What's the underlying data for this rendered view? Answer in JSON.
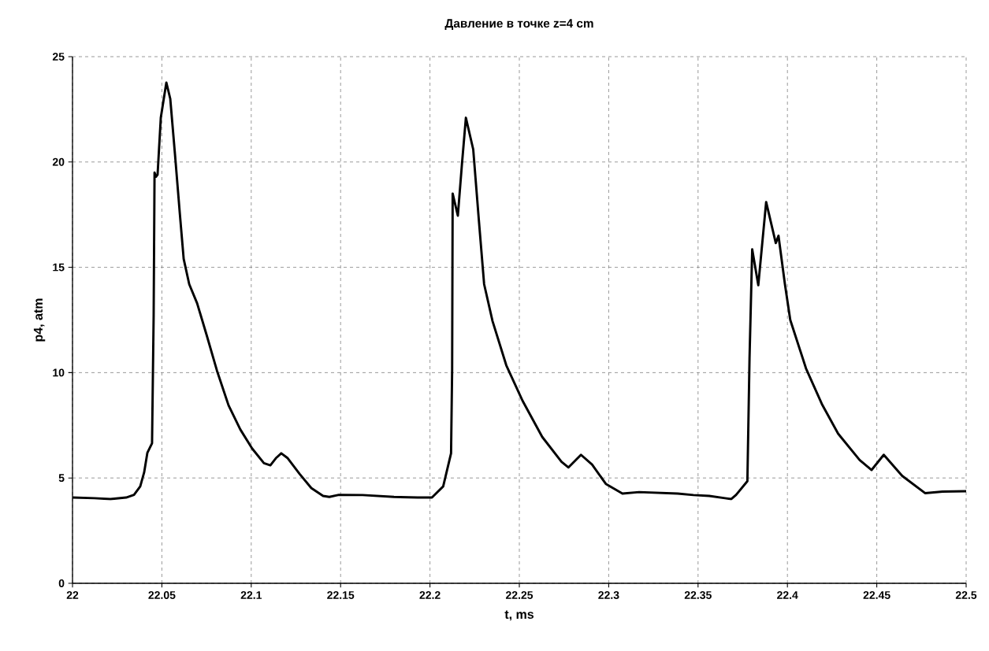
{
  "chart_data": {
    "type": "line",
    "title": "Давление в точке z=4 cm",
    "xlabel": "t, ms",
    "ylabel": "p4, atm",
    "xlim": [
      22,
      22.5
    ],
    "ylim": [
      0,
      25
    ],
    "xticks": [
      22,
      22.05,
      22.1,
      22.15,
      22.2,
      22.25,
      22.3,
      22.35,
      22.4,
      22.45,
      22.5
    ],
    "yticks": [
      0,
      5,
      10,
      15,
      20,
      25
    ],
    "grid": true,
    "line_style": "solid",
    "series": [
      {
        "color": "#000000",
        "x": [
          22.0,
          22.0123,
          22.0212,
          22.03,
          22.0344,
          22.0379,
          22.0401,
          22.0419,
          22.0445,
          22.0454,
          22.0459,
          22.0467,
          22.0476,
          22.0494,
          22.0525,
          22.0547,
          22.0573,
          22.06,
          22.0622,
          22.0653,
          22.0697,
          22.075,
          22.0808,
          22.0873,
          22.0939,
          22.1005,
          22.1071,
          22.1107,
          22.1138,
          22.1168,
          22.1204,
          22.127,
          22.1336,
          22.1402,
          22.1437,
          22.149,
          22.1623,
          22.1799,
          22.1931,
          22.2011,
          22.2074,
          22.2118,
          22.2124,
          22.2127,
          22.2156,
          22.2179,
          22.2201,
          22.2242,
          22.2273,
          22.2303,
          22.235,
          22.2427,
          22.2519,
          22.2628,
          22.2736,
          22.2775,
          22.2845,
          22.2907,
          22.2984,
          22.3077,
          22.317,
          22.3386,
          22.3474,
          22.3563,
          22.3651,
          22.3686,
          22.3713,
          22.3776,
          22.3788,
          22.3803,
          22.3837,
          22.3881,
          22.3935,
          22.395,
          22.3986,
          22.4016,
          22.4104,
          22.4195,
          22.4284,
          22.4404,
          22.4471,
          22.4539,
          22.4642,
          22.477,
          22.4868,
          22.5
        ],
        "values": [
          4.07,
          4.04,
          4.0,
          4.07,
          4.2,
          4.6,
          5.27,
          6.2,
          6.65,
          12.7,
          19.5,
          19.3,
          19.4,
          22.1,
          23.77,
          23.0,
          20.4,
          17.6,
          15.4,
          14.2,
          13.3,
          11.8,
          10.1,
          8.45,
          7.3,
          6.4,
          5.7,
          5.6,
          5.94,
          6.17,
          5.94,
          5.2,
          4.52,
          4.15,
          4.1,
          4.2,
          4.19,
          4.1,
          4.07,
          4.07,
          4.6,
          6.17,
          10.1,
          18.5,
          17.45,
          19.9,
          22.1,
          20.6,
          17.3,
          14.2,
          12.45,
          10.35,
          8.65,
          6.95,
          5.77,
          5.5,
          6.1,
          5.64,
          4.72,
          4.26,
          4.33,
          4.26,
          4.19,
          4.15,
          4.04,
          4.0,
          4.2,
          4.85,
          10.7,
          15.85,
          14.15,
          18.1,
          16.15,
          16.5,
          14.2,
          12.5,
          10.2,
          8.47,
          7.1,
          5.85,
          5.38,
          6.1,
          5.1,
          4.28,
          4.35,
          4.37
        ]
      }
    ]
  }
}
